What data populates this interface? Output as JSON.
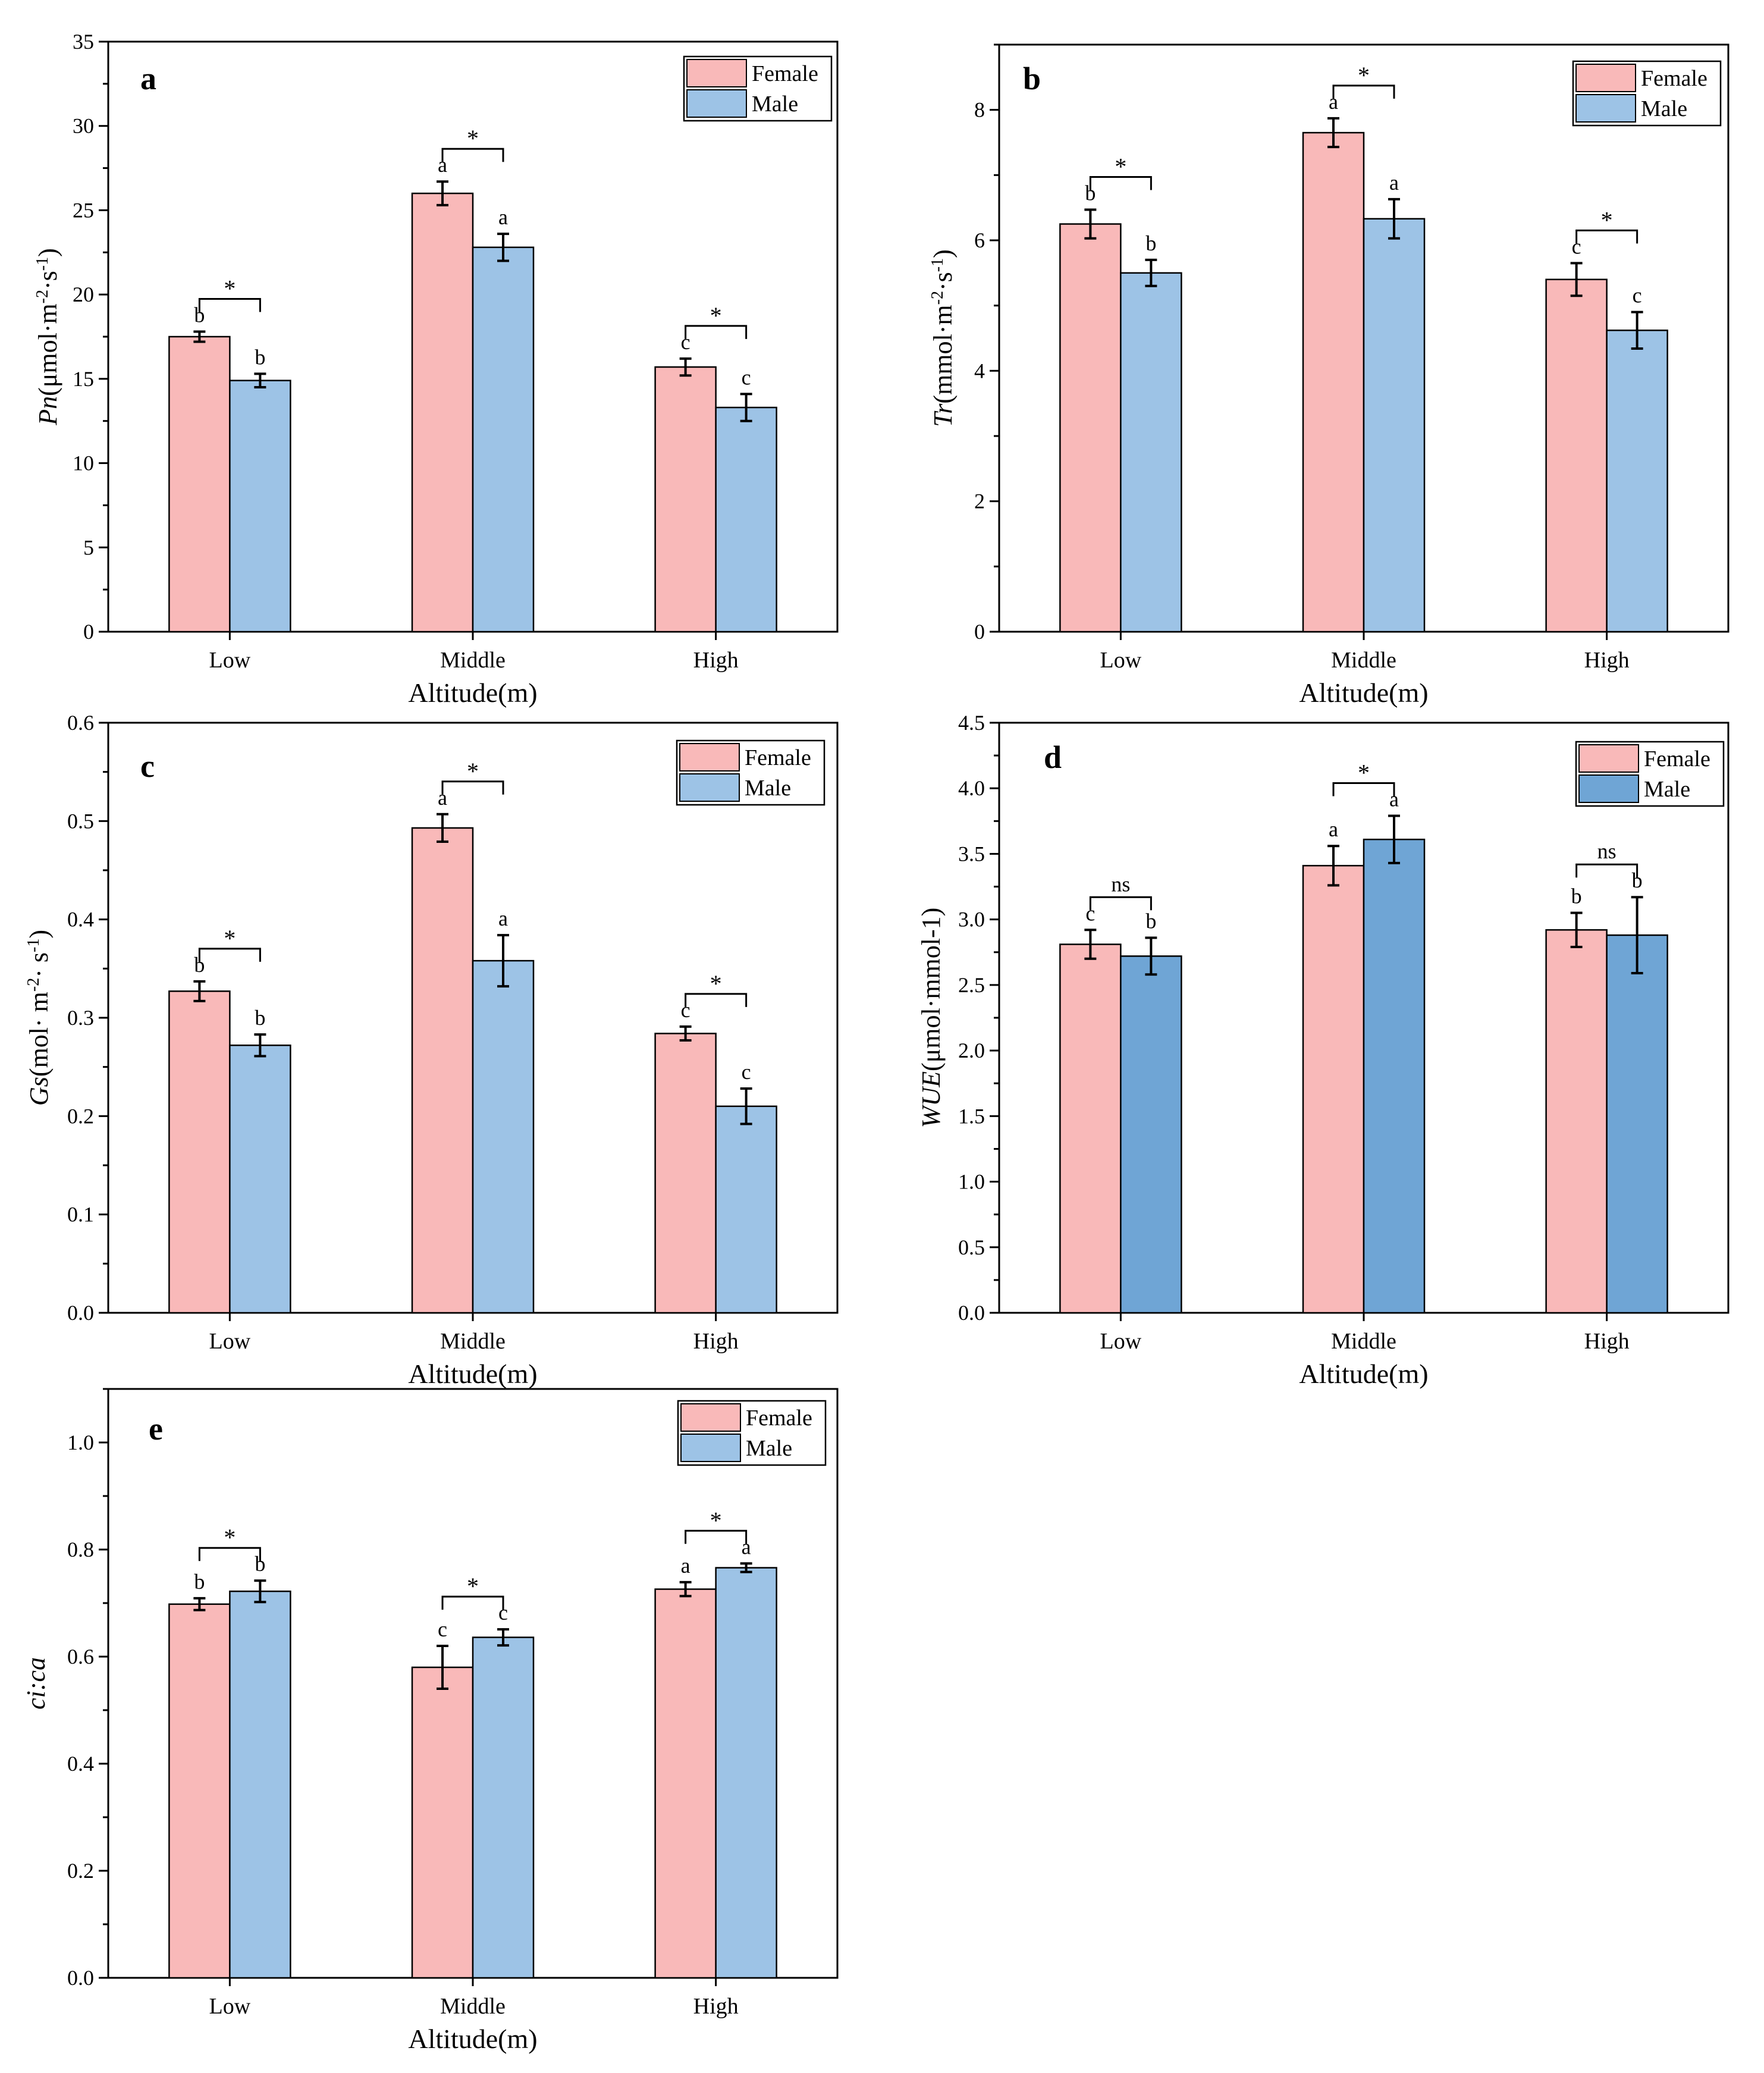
{
  "colors": {
    "female": "#f9b9b9",
    "male": "#9dc3e6",
    "male_dark": "#6fa5d5",
    "stroke": "#000000"
  },
  "chart_data": [
    {
      "panel": "a",
      "type": "bar",
      "xlabel": "Altitude(m)",
      "ylabel_italic": "Pn",
      "ylabel_rest": "(μmol·m",
      "ylabel_sup1": "-2",
      "ylabel_mid": "·s",
      "ylabel_sup2": "-1",
      "ylabel_end": ")",
      "ylim": [
        0,
        35
      ],
      "yticks": [
        "0",
        "5",
        "10",
        "15",
        "20",
        "25",
        "30",
        "35"
      ],
      "ytick_values": [
        0,
        5,
        10,
        15,
        20,
        25,
        30,
        35
      ],
      "categories": [
        "Low",
        "Middle",
        "High"
      ],
      "legend": [
        "Female",
        "Male"
      ],
      "series": [
        {
          "name": "Female",
          "values": [
            17.5,
            26.0,
            15.7
          ],
          "errors": [
            0.3,
            0.7,
            0.5
          ],
          "letters": [
            "b",
            "a",
            "c"
          ]
        },
        {
          "name": "Male",
          "values": [
            14.9,
            22.8,
            13.3
          ],
          "errors": [
            0.4,
            0.8,
            0.8
          ],
          "letters": [
            "b",
            "a",
            "c"
          ]
        }
      ],
      "significance": [
        "*",
        "*",
        "*"
      ]
    },
    {
      "panel": "b",
      "type": "bar",
      "xlabel": "Altitude(m)",
      "ylabel_italic": "Tr",
      "ylabel_rest": "(mmol·m",
      "ylabel_sup1": "-2",
      "ylabel_mid": "·s",
      "ylabel_sup2": "-1",
      "ylabel_end": ")",
      "ylim": [
        0,
        9
      ],
      "yticks": [
        "0",
        "2",
        "4",
        "6",
        "8"
      ],
      "ytick_values": [
        0,
        2,
        4,
        6,
        8
      ],
      "categories": [
        "Low",
        "Middle",
        "High"
      ],
      "legend": [
        "Female",
        "Male"
      ],
      "series": [
        {
          "name": "Female",
          "values": [
            6.25,
            7.65,
            5.4
          ],
          "errors": [
            0.22,
            0.22,
            0.25
          ],
          "letters": [
            "b",
            "a",
            "c"
          ]
        },
        {
          "name": "Male",
          "values": [
            5.5,
            6.33,
            4.62
          ],
          "errors": [
            0.2,
            0.3,
            0.28
          ],
          "letters": [
            "b",
            "a",
            "c"
          ]
        }
      ],
      "significance": [
        "*",
        "*",
        "*"
      ]
    },
    {
      "panel": "c",
      "type": "bar",
      "xlabel": "Altitude(m)",
      "ylabel_italic": "Gs",
      "ylabel_rest": "(mol· m",
      "ylabel_sup1": "-2",
      "ylabel_mid": "· s",
      "ylabel_sup2": "-1",
      "ylabel_end": ")",
      "ylim": [
        0,
        0.6
      ],
      "yticks": [
        "0.0",
        "0.1",
        "0.2",
        "0.3",
        "0.4",
        "0.5",
        "0.6"
      ],
      "ytick_values": [
        0,
        0.1,
        0.2,
        0.3,
        0.4,
        0.5,
        0.6
      ],
      "categories": [
        "Low",
        "Middle",
        "High"
      ],
      "legend": [
        "Female",
        "Male"
      ],
      "series": [
        {
          "name": "Female",
          "values": [
            0.327,
            0.493,
            0.284
          ],
          "errors": [
            0.01,
            0.014,
            0.007
          ],
          "letters": [
            "b",
            "a",
            "c"
          ]
        },
        {
          "name": "Male",
          "values": [
            0.272,
            0.358,
            0.21
          ],
          "errors": [
            0.011,
            0.026,
            0.018
          ],
          "letters": [
            "b",
            "a",
            "c"
          ]
        }
      ],
      "significance": [
        "*",
        "*",
        "*"
      ]
    },
    {
      "panel": "d",
      "type": "bar",
      "xlabel": "Altitude(m)",
      "ylabel_italic": "WUE",
      "ylabel_rest": "(μmol·mmol-1)",
      "ylabel_sup1": "",
      "ylabel_mid": "",
      "ylabel_sup2": "",
      "ylabel_end": "",
      "ylim": [
        0,
        4.5
      ],
      "yticks": [
        "0.0",
        "0.5",
        "1.0",
        "1.5",
        "2.0",
        "2.5",
        "3.0",
        "3.5",
        "4.0",
        "4.5"
      ],
      "ytick_values": [
        0,
        0.5,
        1.0,
        1.5,
        2.0,
        2.5,
        3.0,
        3.5,
        4.0,
        4.5
      ],
      "categories": [
        "Low",
        "Middle",
        "High"
      ],
      "legend": [
        "Female",
        "Male"
      ],
      "series": [
        {
          "name": "Female",
          "values": [
            2.81,
            3.41,
            2.92
          ],
          "errors": [
            0.11,
            0.15,
            0.13
          ],
          "letters": [
            "c",
            "a",
            "b"
          ]
        },
        {
          "name": "Male",
          "values": [
            2.72,
            3.61,
            2.88
          ],
          "errors": [
            0.14,
            0.18,
            0.29
          ],
          "letters": [
            "b",
            "a",
            "b"
          ]
        }
      ],
      "significance": [
        "ns",
        "*",
        "ns"
      ]
    },
    {
      "panel": "e",
      "type": "bar",
      "xlabel": "Altitude(m)",
      "ylabel_italic": "ci:ca",
      "ylabel_rest": "",
      "ylabel_sup1": "",
      "ylabel_mid": "",
      "ylabel_sup2": "",
      "ylabel_end": "",
      "ylim": [
        0,
        1.1
      ],
      "yticks": [
        "0.0",
        "0.2",
        "0.4",
        "0.6",
        "0.8",
        "1.0"
      ],
      "ytick_values": [
        0,
        0.2,
        0.4,
        0.6,
        0.8,
        1.0
      ],
      "categories": [
        "Low",
        "Middle",
        "High"
      ],
      "legend": [
        "Female",
        "Male"
      ],
      "series": [
        {
          "name": "Female",
          "values": [
            0.698,
            0.58,
            0.726
          ],
          "errors": [
            0.011,
            0.04,
            0.013
          ],
          "letters": [
            "b",
            "c",
            "a"
          ]
        },
        {
          "name": "Male",
          "values": [
            0.722,
            0.636,
            0.766
          ],
          "errors": [
            0.02,
            0.015,
            0.008
          ],
          "letters": [
            "b",
            "c",
            "a"
          ]
        }
      ],
      "significance": [
        "*",
        "*",
        "*"
      ]
    }
  ]
}
